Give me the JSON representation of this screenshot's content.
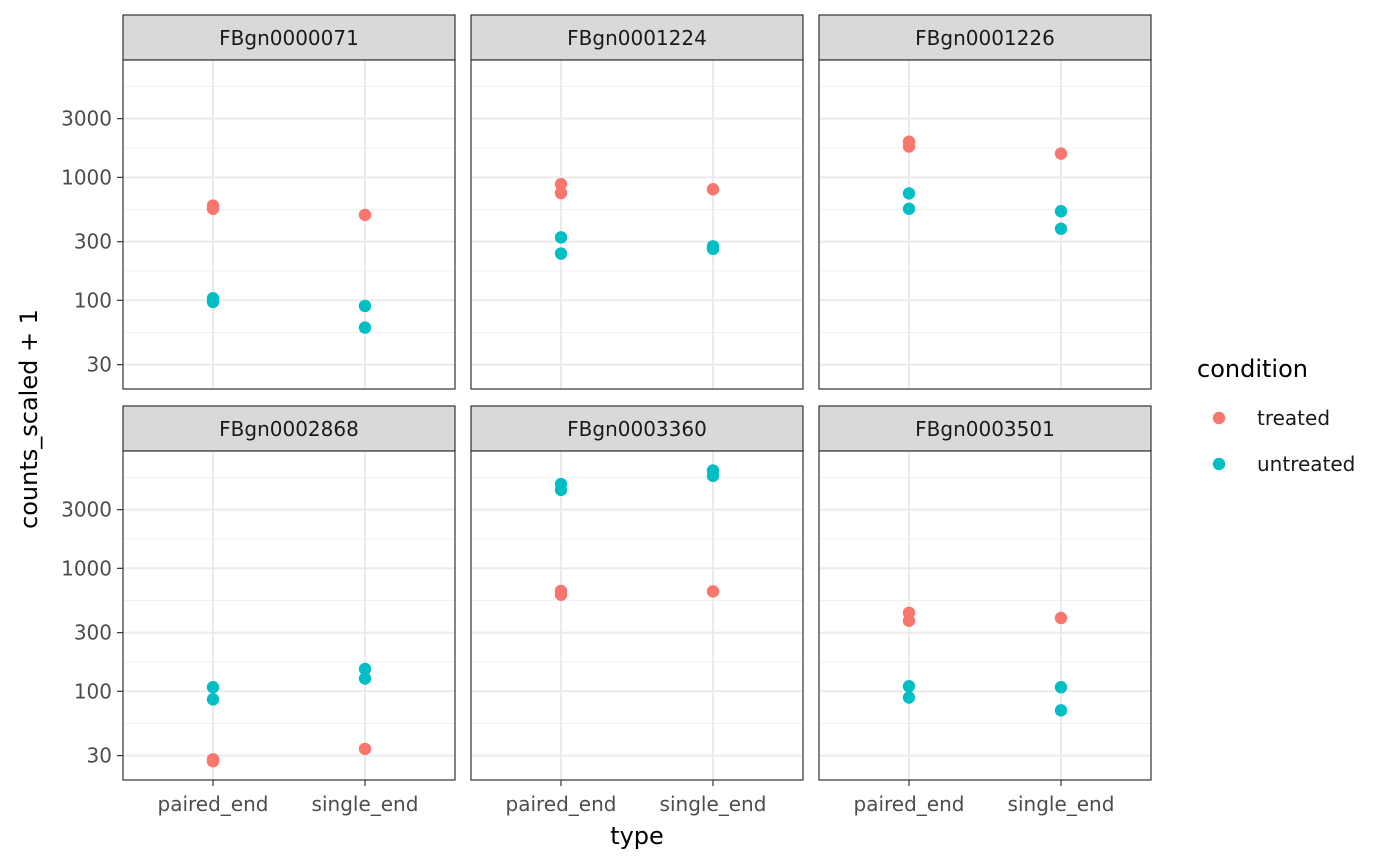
{
  "chart_data": {
    "type": "scatter",
    "xlabel": "type",
    "ylabel": "counts_scaled + 1",
    "y_scale": "log10",
    "ylim": [
      19,
      9000
    ],
    "y_ticks": [
      30,
      100,
      300,
      1000,
      3000
    ],
    "categories": [
      "paired_end",
      "single_end"
    ],
    "legend": {
      "title": "condition",
      "position": "right",
      "entries": [
        {
          "name": "treated",
          "color": "#F8766D"
        },
        {
          "name": "untreated",
          "color": "#00BFC4"
        }
      ]
    },
    "grid": true,
    "facets": [
      {
        "title": "FBgn0000071",
        "points": [
          {
            "x": "paired_end",
            "y": 590,
            "condition": "treated"
          },
          {
            "x": "paired_end",
            "y": 555,
            "condition": "treated"
          },
          {
            "x": "single_end",
            "y": 495,
            "condition": "treated"
          },
          {
            "x": "paired_end",
            "y": 104,
            "condition": "untreated"
          },
          {
            "x": "paired_end",
            "y": 97,
            "condition": "untreated"
          },
          {
            "x": "single_end",
            "y": 90,
            "condition": "untreated"
          },
          {
            "x": "single_end",
            "y": 60,
            "condition": "untreated"
          }
        ]
      },
      {
        "title": "FBgn0001224",
        "points": [
          {
            "x": "paired_end",
            "y": 880,
            "condition": "treated"
          },
          {
            "x": "paired_end",
            "y": 745,
            "condition": "treated"
          },
          {
            "x": "single_end",
            "y": 800,
            "condition": "treated"
          },
          {
            "x": "paired_end",
            "y": 325,
            "condition": "untreated"
          },
          {
            "x": "paired_end",
            "y": 240,
            "condition": "untreated"
          },
          {
            "x": "single_end",
            "y": 275,
            "condition": "untreated"
          },
          {
            "x": "single_end",
            "y": 262,
            "condition": "untreated"
          }
        ]
      },
      {
        "title": "FBgn0001226",
        "points": [
          {
            "x": "paired_end",
            "y": 1950,
            "condition": "treated"
          },
          {
            "x": "paired_end",
            "y": 1780,
            "condition": "treated"
          },
          {
            "x": "single_end",
            "y": 1560,
            "condition": "treated"
          },
          {
            "x": "paired_end",
            "y": 740,
            "condition": "untreated"
          },
          {
            "x": "paired_end",
            "y": 555,
            "condition": "untreated"
          },
          {
            "x": "single_end",
            "y": 530,
            "condition": "untreated"
          },
          {
            "x": "single_end",
            "y": 382,
            "condition": "untreated"
          }
        ]
      },
      {
        "title": "FBgn0002868",
        "points": [
          {
            "x": "paired_end",
            "y": 28,
            "condition": "treated"
          },
          {
            "x": "paired_end",
            "y": 27,
            "condition": "treated"
          },
          {
            "x": "single_end",
            "y": 34,
            "condition": "treated"
          },
          {
            "x": "paired_end",
            "y": 108,
            "condition": "untreated"
          },
          {
            "x": "paired_end",
            "y": 86,
            "condition": "untreated"
          },
          {
            "x": "single_end",
            "y": 152,
            "condition": "untreated"
          },
          {
            "x": "single_end",
            "y": 127,
            "condition": "untreated"
          }
        ]
      },
      {
        "title": "FBgn0003360",
        "points": [
          {
            "x": "paired_end",
            "y": 655,
            "condition": "treated"
          },
          {
            "x": "paired_end",
            "y": 610,
            "condition": "treated"
          },
          {
            "x": "single_end",
            "y": 650,
            "condition": "treated"
          },
          {
            "x": "paired_end",
            "y": 4850,
            "condition": "untreated"
          },
          {
            "x": "paired_end",
            "y": 4350,
            "condition": "untreated"
          },
          {
            "x": "single_end",
            "y": 6250,
            "condition": "untreated"
          },
          {
            "x": "single_end",
            "y": 5650,
            "condition": "untreated"
          }
        ]
      },
      {
        "title": "FBgn0003501",
        "points": [
          {
            "x": "paired_end",
            "y": 435,
            "condition": "treated"
          },
          {
            "x": "paired_end",
            "y": 375,
            "condition": "treated"
          },
          {
            "x": "single_end",
            "y": 395,
            "condition": "treated"
          },
          {
            "x": "paired_end",
            "y": 110,
            "condition": "untreated"
          },
          {
            "x": "paired_end",
            "y": 89,
            "condition": "untreated"
          },
          {
            "x": "single_end",
            "y": 108,
            "condition": "untreated"
          },
          {
            "x": "single_end",
            "y": 70,
            "condition": "untreated"
          }
        ]
      }
    ]
  }
}
